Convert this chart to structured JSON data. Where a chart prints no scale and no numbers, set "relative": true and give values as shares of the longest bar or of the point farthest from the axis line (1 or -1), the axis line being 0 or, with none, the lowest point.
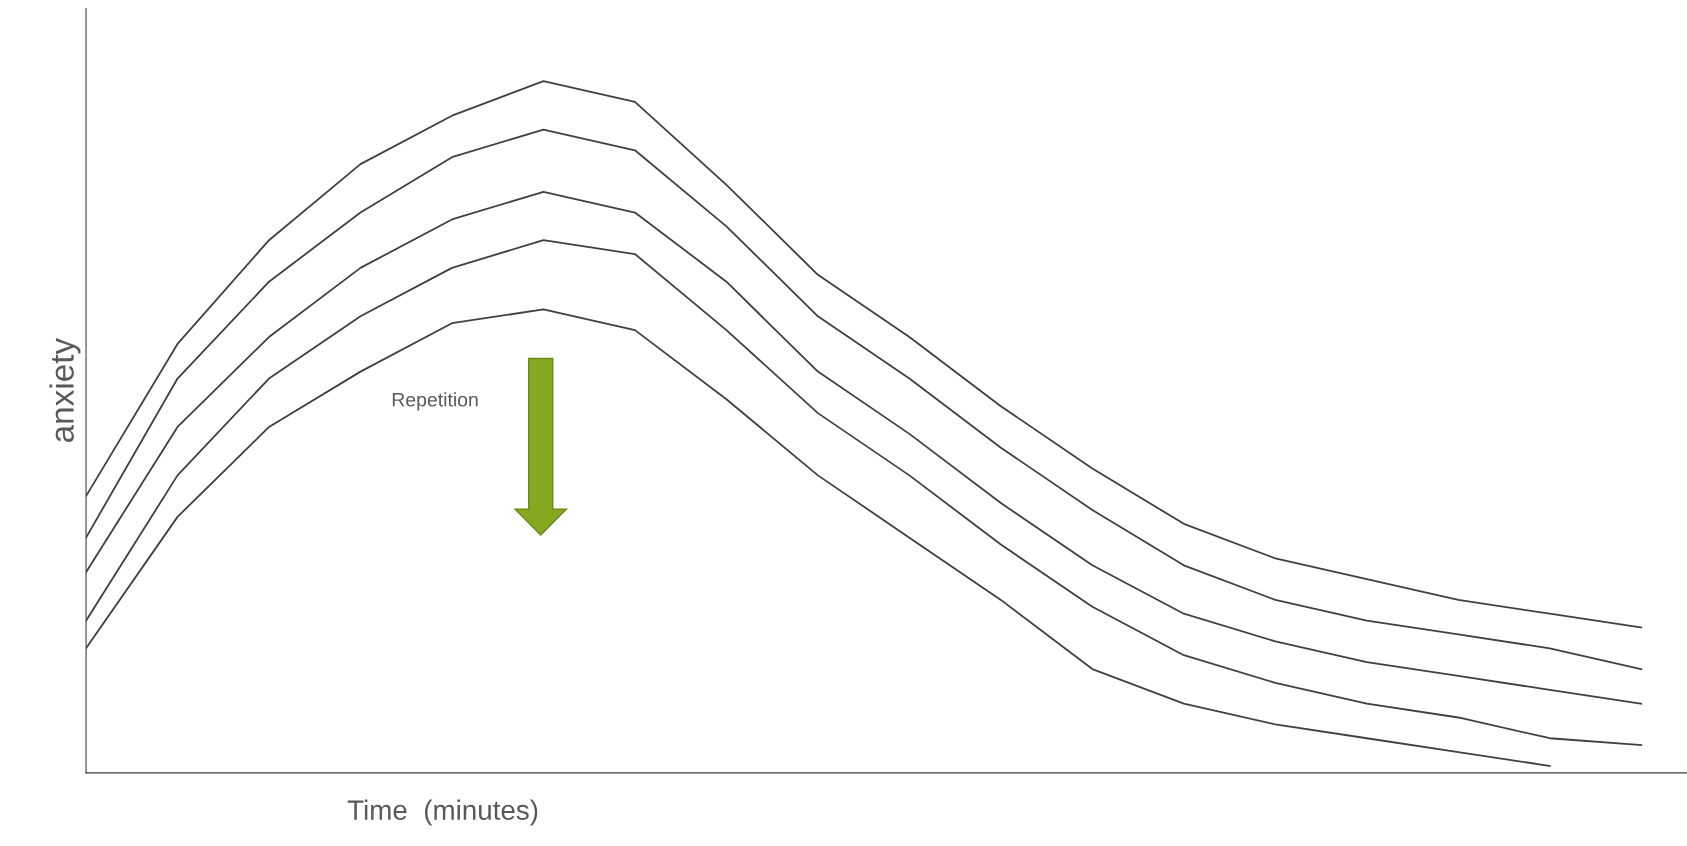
{
  "chart_data": {
    "type": "line",
    "relative": true,
    "xlabel": "Time  (minutes)",
    "ylabel": "anxiety",
    "categories": [
      null,
      null,
      null,
      null,
      null,
      null,
      null,
      null,
      null,
      null,
      null,
      null,
      null,
      null,
      null,
      null,
      null,
      null
    ],
    "series": [
      {
        "color": "#404040",
        "values": [
          0.4,
          0.62,
          0.77,
          0.88,
          0.95,
          1.0,
          0.97,
          0.85,
          0.72,
          0.63,
          0.53,
          0.44,
          0.36,
          0.31,
          0.28,
          0.25,
          0.23,
          0.21
        ]
      },
      {
        "color": "#404040",
        "values": [
          0.34,
          0.57,
          0.71,
          0.81,
          0.89,
          0.93,
          0.9,
          0.79,
          0.66,
          0.57,
          0.47,
          0.38,
          0.3,
          0.25,
          0.22,
          0.2,
          0.18,
          0.15
        ]
      },
      {
        "color": "#404040",
        "values": [
          0.29,
          0.5,
          0.63,
          0.73,
          0.8,
          0.84,
          0.81,
          0.71,
          0.58,
          0.49,
          0.39,
          0.3,
          0.23,
          0.19,
          0.16,
          0.14,
          0.12,
          0.1
        ]
      },
      {
        "color": "#404040",
        "values": [
          0.22,
          0.43,
          0.57,
          0.66,
          0.73,
          0.77,
          0.75,
          0.64,
          0.52,
          0.43,
          0.33,
          0.24,
          0.17,
          0.13,
          0.1,
          0.08,
          0.05,
          0.04
        ]
      },
      {
        "color": "#404040",
        "values": [
          0.18,
          0.37,
          0.5,
          0.58,
          0.65,
          0.67,
          0.64,
          0.54,
          0.43,
          0.34,
          0.25,
          0.15,
          0.1,
          0.07,
          0.05,
          0.03,
          0.01,
          null
        ]
      }
    ],
    "annotations": [
      "Repetition"
    ],
    "grid": false,
    "legend": false
  }
}
